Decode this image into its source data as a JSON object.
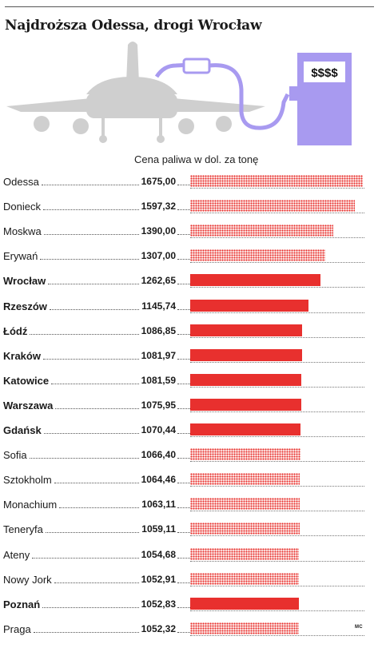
{
  "title": "Najdroższa Odessa, drogi Wrocław",
  "illustration": {
    "pump_label": "$$$$",
    "colors": {
      "plane": "#cfcfcf",
      "pump": "#a89af0"
    }
  },
  "credit": "MC",
  "colors": {
    "polish_bar": "#e8302e",
    "foreign_bar_dots": "#e8302e"
  },
  "chart_data": {
    "type": "bar",
    "orientation": "horizontal",
    "title": "Najdroższa Odessa, drogi Wrocław",
    "subtitle": "Cena paliwa w dol. za tonę",
    "xlim": [
      0,
      1675
    ],
    "categories": [
      "Odessa",
      "Donieck",
      "Moskwa",
      "Erywań",
      "Wrocław",
      "Rzeszów",
      "Łódź",
      "Kraków",
      "Katowice",
      "Warszawa",
      "Gdańsk",
      "Sofia",
      "Sztokholm",
      "Monachium",
      "Teneryfa",
      "Ateny",
      "Nowy Jork",
      "Poznań",
      "Praga"
    ],
    "values": [
      1675.0,
      1597.32,
      1390.0,
      1307.0,
      1262.65,
      1145.74,
      1086.85,
      1081.97,
      1081.59,
      1075.95,
      1070.44,
      1066.4,
      1064.46,
      1063.11,
      1059.11,
      1054.68,
      1052.91,
      1052.83,
      1052.32
    ],
    "labels": [
      "1675,00",
      "1597,32",
      "1390,00",
      "1307,00",
      "1262,65",
      "1145,74",
      "1086,85",
      "1081,97",
      "1081,59",
      "1075,95",
      "1070,44",
      "1066,40",
      "1064,46",
      "1063,11",
      "1059,11",
      "1054,68",
      "1052,91",
      "1052,83",
      "1052,32"
    ],
    "polish": [
      false,
      false,
      false,
      false,
      true,
      true,
      true,
      true,
      true,
      true,
      true,
      false,
      false,
      false,
      false,
      false,
      false,
      true,
      false
    ]
  }
}
